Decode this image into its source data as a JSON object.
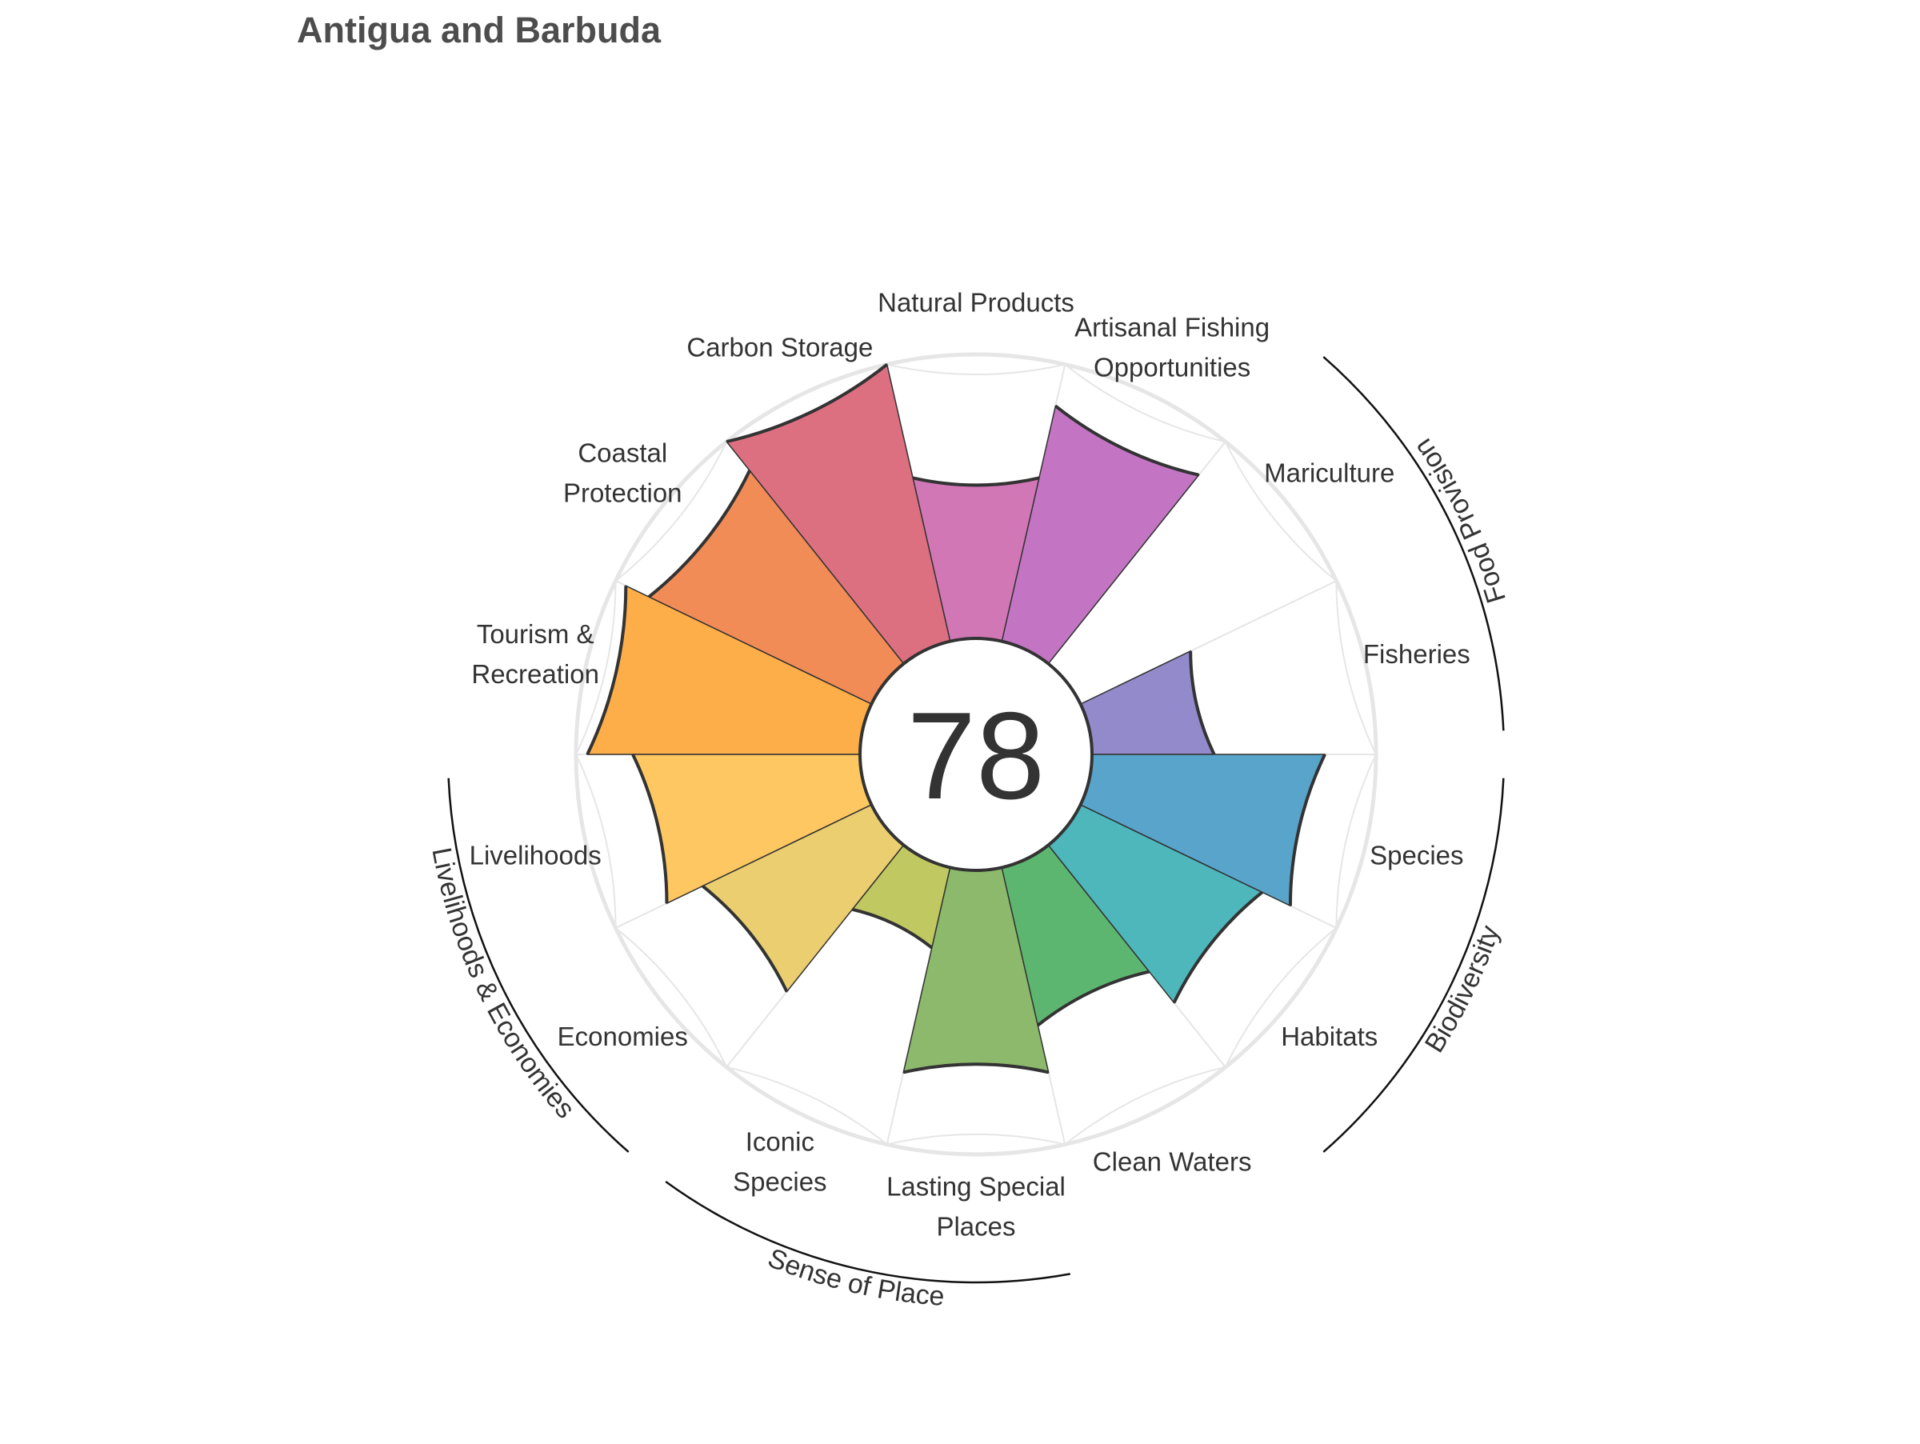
{
  "chart_data": {
    "type": "polar-bar",
    "title": "Antigua and Barbuda",
    "center_score": "78",
    "radial_range": [
      0,
      100
    ],
    "sectors": [
      {
        "name": "fisheries",
        "label_lines": [
          "Fisheries"
        ],
        "value": 43,
        "color": "#938ACC",
        "group": "food"
      },
      {
        "name": "mariculture",
        "label_lines": [
          "Mariculture"
        ],
        "value": 0,
        "color": "#B48AD0",
        "group": "food"
      },
      {
        "name": "artisanal-fishing",
        "label_lines": [
          "Artisanal Fishing",
          "Opportunities"
        ],
        "value": 85,
        "color": "#C375C4",
        "group": null
      },
      {
        "name": "natural-products",
        "label_lines": [
          "Natural Products"
        ],
        "value": 59,
        "color": "#D177B6",
        "group": null
      },
      {
        "name": "carbon-storage",
        "label_lines": [
          "Carbon Storage"
        ],
        "value": 100,
        "color": "#DD7080",
        "group": null
      },
      {
        "name": "coastal-protection",
        "label_lines": [
          "Coastal",
          "Protection"
        ],
        "value": 87,
        "color": "#F28C57",
        "group": null
      },
      {
        "name": "tourism-recreation",
        "label_lines": [
          "Tourism &",
          "Recreation"
        ],
        "value": 96,
        "color": "#FDAE49",
        "group": null
      },
      {
        "name": "livelihoods",
        "label_lines": [
          "Livelihoods"
        ],
        "value": 80,
        "color": "#FEC761",
        "group": "liveco"
      },
      {
        "name": "economies",
        "label_lines": [
          "Economies"
        ],
        "value": 66,
        "color": "#EACE70",
        "group": "liveco"
      },
      {
        "name": "iconic-species",
        "label_lines": [
          "Iconic",
          "Species"
        ],
        "value": 29,
        "color": "#C0C862",
        "group": "sense"
      },
      {
        "name": "lasting-special-places",
        "label_lines": [
          "Lasting Special",
          "Places"
        ],
        "value": 74,
        "color": "#8CB96B",
        "group": "sense"
      },
      {
        "name": "clean-waters",
        "label_lines": [
          "Clean Waters"
        ],
        "value": 57,
        "color": "#5DB670",
        "group": null
      },
      {
        "name": "habitats",
        "label_lines": [
          "Habitats"
        ],
        "value": 71,
        "color": "#4DB7BC",
        "group": "bio"
      },
      {
        "name": "species",
        "label_lines": [
          "Species"
        ],
        "value": 82,
        "color": "#58A4CB",
        "group": "bio"
      }
    ],
    "groups": [
      {
        "name": "food",
        "label": "Food Provision"
      },
      {
        "name": "bio",
        "label": "Biodiversity"
      },
      {
        "name": "sense",
        "label": "Sense of Place"
      },
      {
        "name": "liveco",
        "label": "Livelihoods & Economies"
      }
    ]
  }
}
